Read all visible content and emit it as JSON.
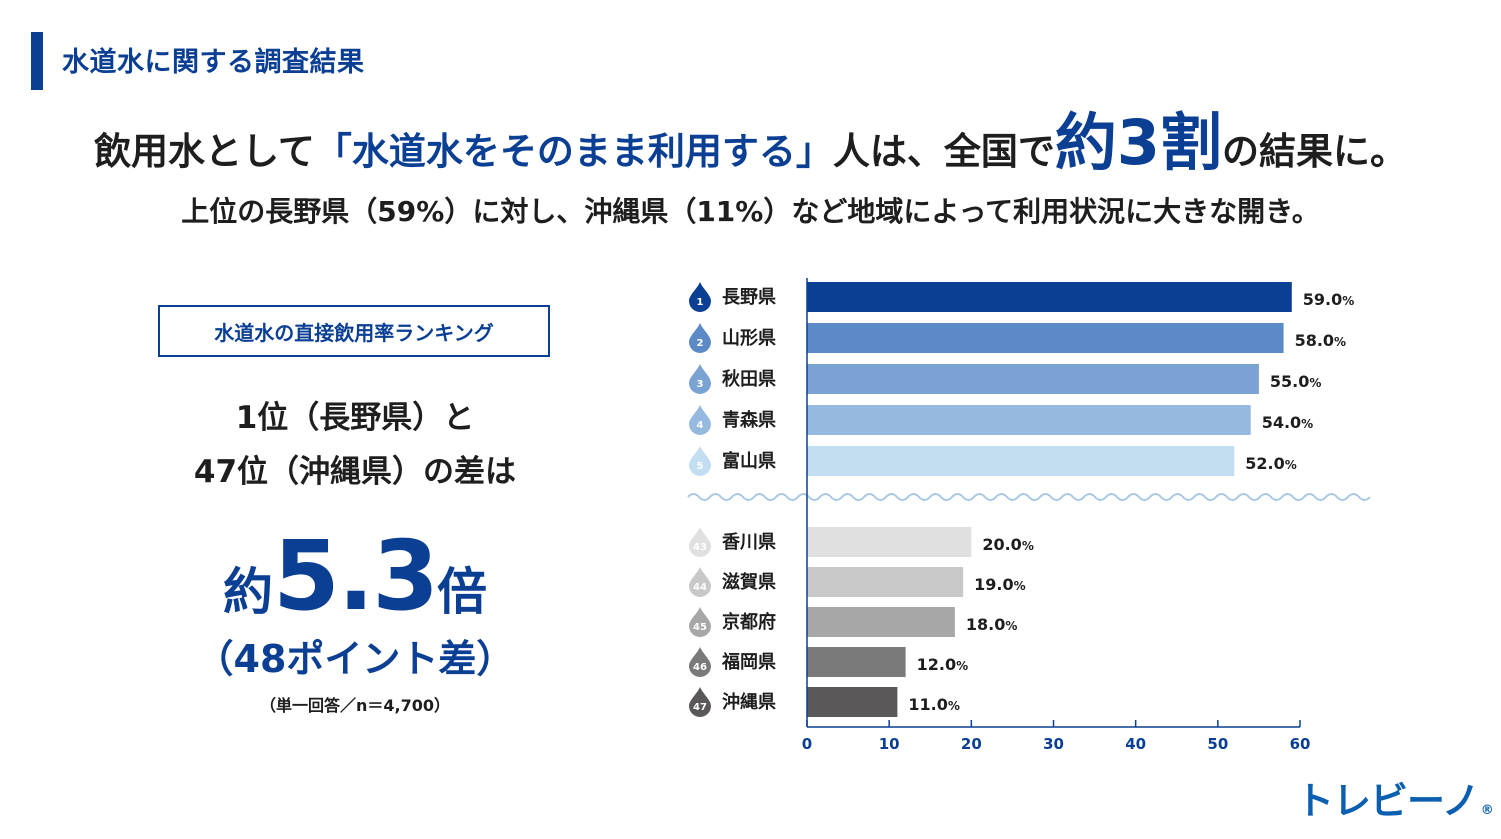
{
  "header": {
    "section_title": "水道水に関する調査結果",
    "headline_pre": "飲用水として",
    "headline_quote": "「水道水をそのまま利用する」",
    "headline_mid": "人は、全国で",
    "headline_big": "約3割",
    "headline_post": "の結果に。",
    "subline": "上位の長野県（59%）に対し、沖縄県（11%）など地域によって利用状況に大きな開き。"
  },
  "left_panel": {
    "ranking_title": "水道水の直接飲用率ランキング",
    "diff_line1": "1位（長野県）と",
    "diff_line2": "47位（沖縄県）の差は",
    "ratio_prefix": "約",
    "ratio_value": "5.3",
    "ratio_suffix": "倍",
    "points": "（48ポイント差）",
    "note": "（単一回答／n＝4,700）"
  },
  "chart_data": {
    "type": "bar",
    "orientation": "horizontal",
    "title": "水道水の直接飲用率ランキング",
    "categories": [
      "長野県",
      "山形県",
      "秋田県",
      "青森県",
      "富山県",
      "香川県",
      "滋賀県",
      "京都府",
      "福岡県",
      "沖縄県"
    ],
    "ranks": [
      "1",
      "2",
      "3",
      "4",
      "5",
      "43",
      "44",
      "45",
      "46",
      "47"
    ],
    "values": [
      59.0,
      58.0,
      55.0,
      54.0,
      52.0,
      20.0,
      19.0,
      18.0,
      12.0,
      11.0
    ],
    "value_labels": [
      "59.0",
      "58.0",
      "55.0",
      "54.0",
      "52.0",
      "20.0",
      "19.0",
      "18.0",
      "12.0",
      "11.0"
    ],
    "value_unit": "%",
    "colors": [
      "#0b3f94",
      "#5b8ac6",
      "#7aa2d2",
      "#96b9e0",
      "#c3ddf1",
      "#e0e0e0",
      "#c8c8c8",
      "#a7a7a7",
      "#7a7a7a",
      "#5a5858"
    ],
    "xlim": [
      0,
      60
    ],
    "xticks": [
      "0",
      "10",
      "20",
      "30",
      "40",
      "50",
      "60"
    ],
    "axis_break_after_rank": "5"
  },
  "branding": {
    "logo": "トレビーノ",
    "registered_mark": "®"
  }
}
